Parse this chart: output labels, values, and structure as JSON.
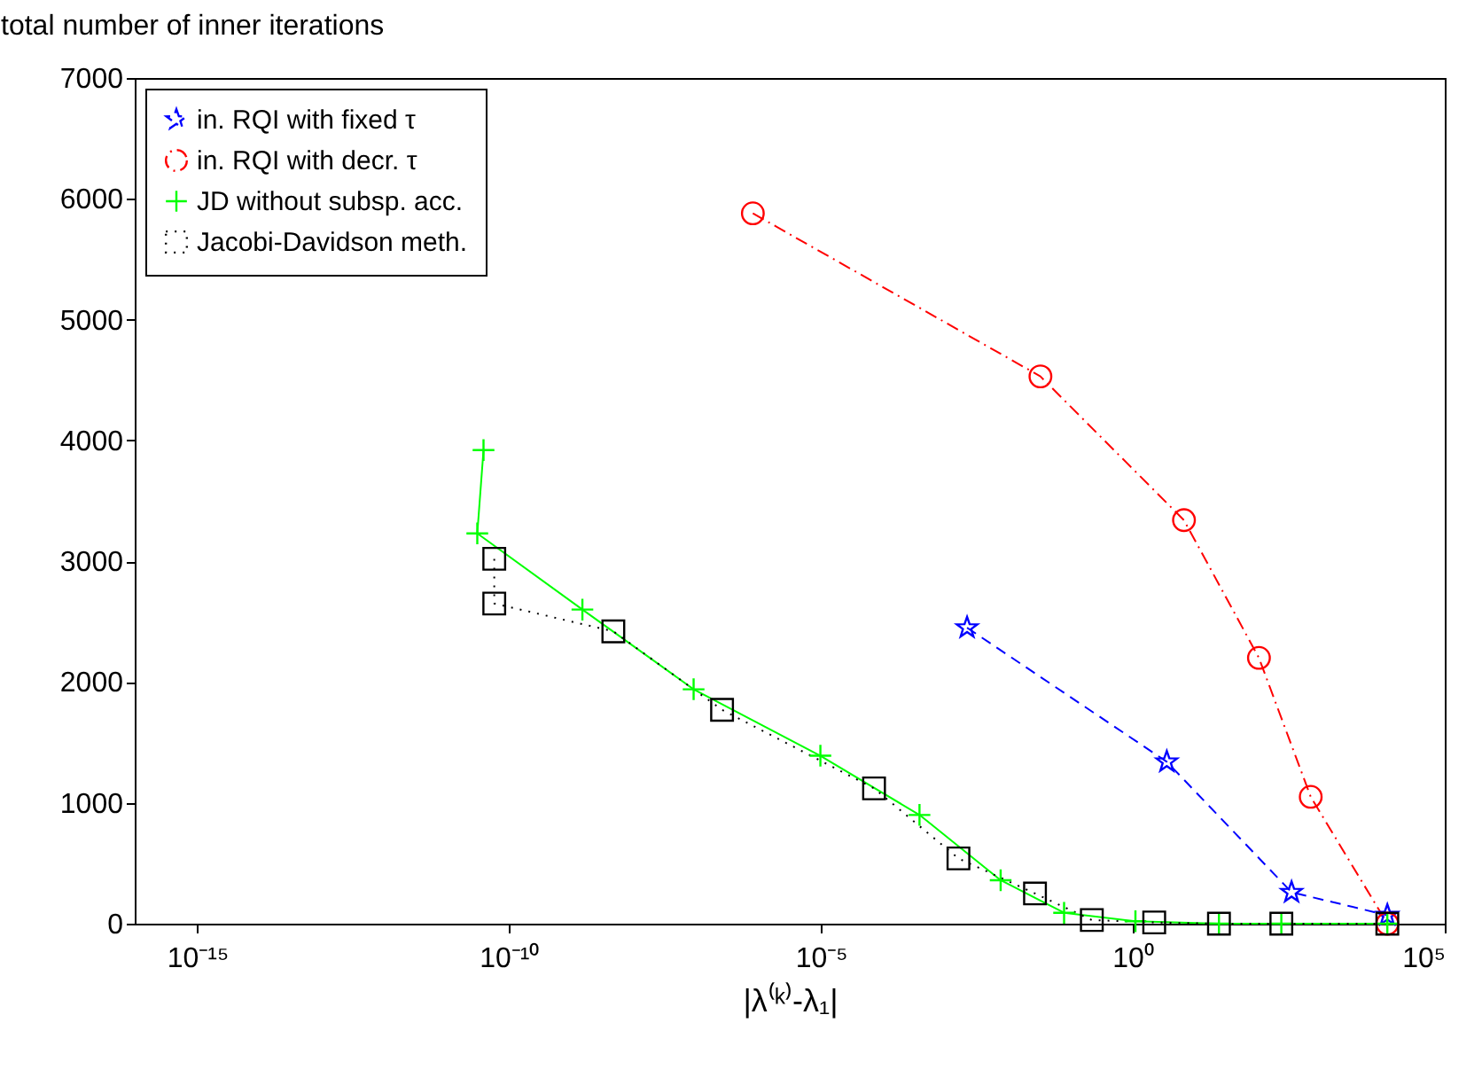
{
  "chart_data": {
    "type": "line",
    "xlabel": "|λ⁽ᵏ⁾-λ₁|",
    "ylabel": "total number of inner iterations",
    "log": "x",
    "xlim": [
      1e-16,
      100000
    ],
    "xticks": [
      {
        "value": 1e-15,
        "label": "10⁻¹⁵"
      },
      {
        "value": 1e-10,
        "label": "10⁻¹⁰"
      },
      {
        "value": 1e-05,
        "label": "10⁻⁵"
      },
      {
        "value": 1,
        "label": "10⁰"
      },
      {
        "value": 100000,
        "label": "10⁵"
      }
    ],
    "ylim": [
      0,
      7000
    ],
    "yticks": [
      0,
      1000,
      2000,
      3000,
      4000,
      5000,
      6000,
      7000
    ],
    "grid": false,
    "legend": "top left",
    "series": [
      {
        "name": "in. RQI with fixed τ",
        "color": "#0000ff",
        "marker": "star",
        "line_style": "dashed",
        "x": [
          0.0022,
          3.5,
          350,
          12000.0
        ],
        "values": [
          2450,
          1340,
          260,
          70
        ]
      },
      {
        "name": "in. RQI with decr. τ",
        "color": "#ff0000",
        "marker": "circle",
        "line_style": "dashdot",
        "x": [
          8.1e-07,
          0.033,
          6.6,
          105,
          710,
          12000.0
        ],
        "values": [
          5880,
          4530,
          3340,
          2200,
          1050,
          0
        ]
      },
      {
        "name": "JD without subsp. acc.",
        "color": "#00ff00",
        "marker": "cross",
        "line_style": "solid",
        "x": [
          3.9e-11,
          3.1e-11,
          1.5e-09,
          9.1e-08,
          9.8e-06,
          0.00038,
          0.0076,
          0.079,
          1.1,
          24,
          240,
          12000.0
        ],
        "values": [
          3920,
          3230,
          2600,
          1940,
          1390,
          900,
          360,
          90,
          20,
          0,
          0,
          0
        ]
      },
      {
        "name": "Jacobi-Davidson meth.",
        "color": "#000000",
        "marker": "square",
        "line_style": "dotted",
        "x": [
          5.8e-11,
          5.8e-11,
          4.7e-09,
          2.6e-07,
          7.1e-05,
          0.0016,
          0.027,
          0.22,
          2.2,
          24,
          240,
          12000.0
        ],
        "values": [
          3020,
          2650,
          2420,
          1770,
          1120,
          540,
          250,
          30,
          10,
          0,
          0,
          0
        ]
      }
    ]
  }
}
